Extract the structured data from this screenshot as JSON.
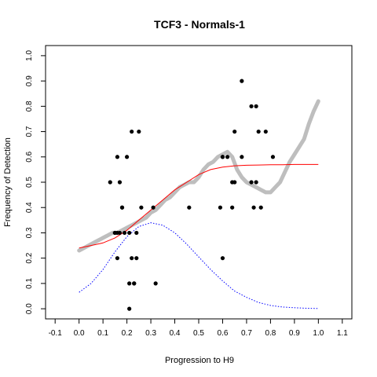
{
  "chart_data": {
    "type": "scatter",
    "title": "TCF3 - Normals-1",
    "xlabel": "Progression to H9",
    "ylabel": "Frequency of Detection",
    "xlim": [
      -0.14,
      1.14
    ],
    "ylim": [
      -0.04,
      1.04
    ],
    "x_ticks": [
      "-0.1",
      "0.0",
      "0.1",
      "0.2",
      "0.3",
      "0.4",
      "0.5",
      "0.6",
      "0.7",
      "0.8",
      "0.9",
      "1.0",
      "1.1"
    ],
    "x_tick_values": [
      -0.1,
      0.0,
      0.1,
      0.2,
      0.3,
      0.4,
      0.5,
      0.6,
      0.7,
      0.8,
      0.9,
      1.0,
      1.1
    ],
    "y_ticks": [
      "0.0",
      "0.1",
      "0.2",
      "0.3",
      "0.4",
      "0.5",
      "0.6",
      "0.7",
      "0.8",
      "0.9",
      "1.0"
    ],
    "y_tick_values": [
      0.0,
      0.1,
      0.2,
      0.3,
      0.4,
      0.5,
      0.6,
      0.7,
      0.8,
      0.9,
      1.0
    ],
    "grid": false,
    "legend": "none",
    "colors": {
      "points": "#000000",
      "smooth": "#bebebe",
      "fit": "#ff0000",
      "density": "#0000ff"
    },
    "series": [
      {
        "style": "points",
        "x": [
          0.16,
          0.16,
          0.16,
          0.17,
          0.17,
          0.18,
          0.18,
          0.19,
          0.2,
          0.21,
          0.21,
          0.21,
          0.22,
          0.22,
          0.23,
          0.23,
          0.24,
          0.24,
          0.25,
          0.26,
          0.31,
          0.32,
          0.46,
          0.6,
          0.59,
          0.6,
          0.6,
          0.62,
          0.64,
          0.64,
          0.65,
          0.65,
          0.68,
          0.68,
          0.72,
          0.72,
          0.73,
          0.74,
          0.74,
          0.75,
          0.76,
          0.78,
          0.81,
          0.15,
          0.15,
          0.13
        ],
        "y": [
          0.2,
          0.3,
          0.6,
          0.3,
          0.5,
          0.4,
          0.4,
          0.3,
          0.6,
          0.3,
          0.1,
          0.0,
          0.7,
          0.2,
          0.1,
          0.1,
          0.3,
          0.2,
          0.7,
          0.4,
          0.4,
          0.1,
          0.4,
          0.2,
          0.4,
          0.6,
          0.6,
          0.6,
          0.4,
          0.5,
          0.5,
          0.7,
          0.9,
          0.6,
          0.5,
          0.8,
          0.4,
          0.8,
          0.5,
          0.7,
          0.4,
          0.7,
          0.6,
          0.3,
          0.3,
          0.5
        ]
      },
      {
        "style": "smooth",
        "x": [
          0.0,
          0.02,
          0.04,
          0.06,
          0.08,
          0.1,
          0.12,
          0.14,
          0.16,
          0.18,
          0.2,
          0.22,
          0.24,
          0.26,
          0.28,
          0.3,
          0.32,
          0.34,
          0.36,
          0.38,
          0.4,
          0.42,
          0.44,
          0.46,
          0.48,
          0.5,
          0.52,
          0.54,
          0.56,
          0.58,
          0.6,
          0.62,
          0.64,
          0.66,
          0.68,
          0.7,
          0.72,
          0.74,
          0.76,
          0.78,
          0.8,
          0.82,
          0.84,
          0.86,
          0.88,
          0.9,
          0.92,
          0.94,
          0.96,
          0.98,
          1.0
        ],
        "y": [
          0.23,
          0.24,
          0.25,
          0.26,
          0.27,
          0.28,
          0.29,
          0.3,
          0.3,
          0.31,
          0.32,
          0.33,
          0.34,
          0.35,
          0.36,
          0.38,
          0.39,
          0.41,
          0.43,
          0.44,
          0.46,
          0.48,
          0.49,
          0.5,
          0.5,
          0.52,
          0.55,
          0.57,
          0.58,
          0.6,
          0.61,
          0.62,
          0.6,
          0.55,
          0.52,
          0.5,
          0.49,
          0.48,
          0.47,
          0.46,
          0.46,
          0.48,
          0.5,
          0.54,
          0.58,
          0.61,
          0.64,
          0.67,
          0.73,
          0.78,
          0.82
        ]
      },
      {
        "style": "fit",
        "x": [
          0.0,
          0.05,
          0.1,
          0.15,
          0.2,
          0.25,
          0.3,
          0.35,
          0.4,
          0.45,
          0.5,
          0.55,
          0.6,
          0.65,
          0.7,
          0.75,
          0.8,
          0.85,
          0.9,
          0.95,
          1.0
        ],
        "y": [
          0.24,
          0.25,
          0.26,
          0.28,
          0.31,
          0.35,
          0.39,
          0.43,
          0.47,
          0.5,
          0.53,
          0.55,
          0.56,
          0.565,
          0.567,
          0.568,
          0.569,
          0.569,
          0.57,
          0.57,
          0.57
        ]
      },
      {
        "style": "density",
        "x": [
          0.0,
          0.05,
          0.1,
          0.15,
          0.2,
          0.25,
          0.3,
          0.35,
          0.4,
          0.45,
          0.5,
          0.55,
          0.6,
          0.65,
          0.7,
          0.75,
          0.8,
          0.85,
          0.9,
          0.95,
          1.0
        ],
        "y": [
          0.065,
          0.1,
          0.155,
          0.225,
          0.285,
          0.325,
          0.34,
          0.33,
          0.3,
          0.255,
          0.205,
          0.155,
          0.11,
          0.07,
          0.045,
          0.025,
          0.013,
          0.007,
          0.004,
          0.002,
          0.001
        ]
      }
    ]
  }
}
